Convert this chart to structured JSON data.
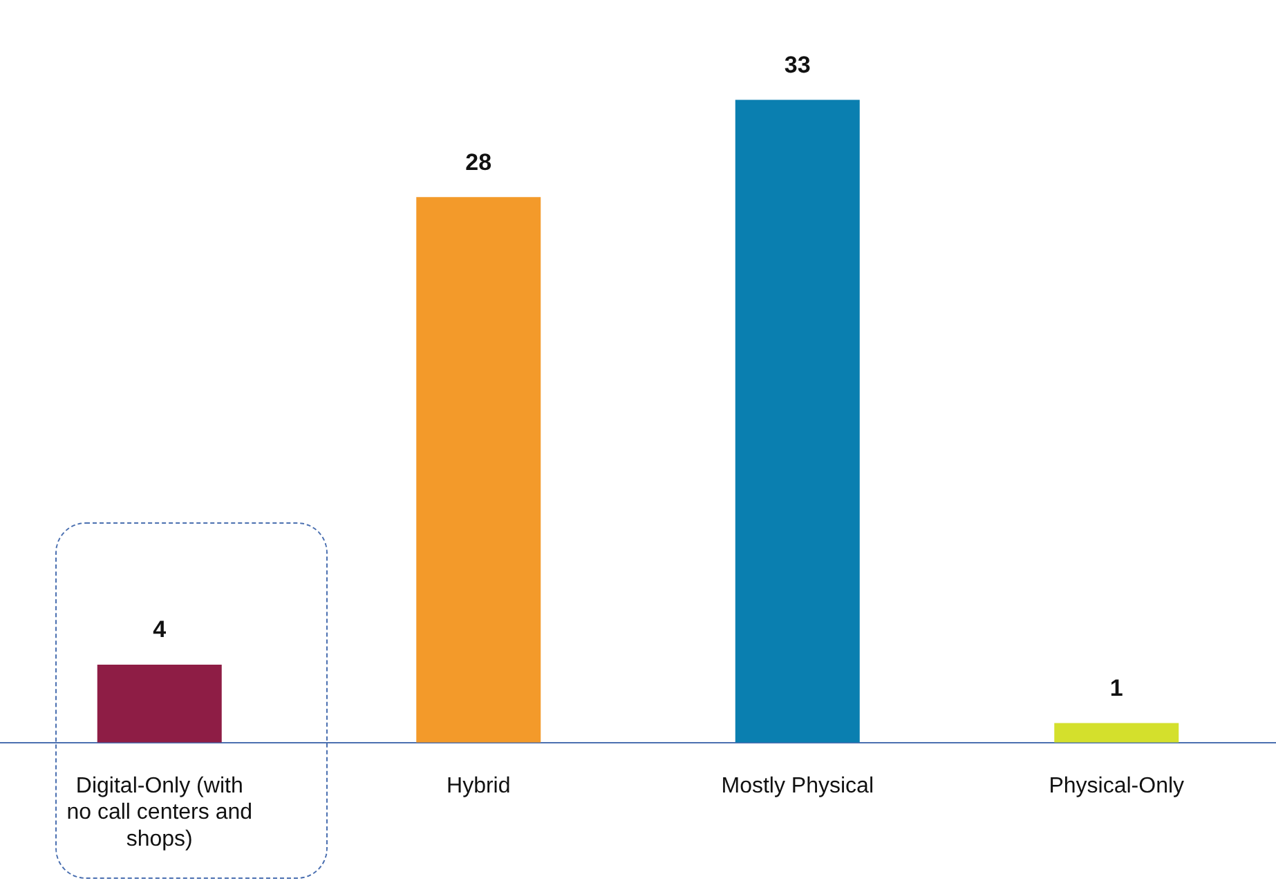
{
  "chart_data": {
    "type": "bar",
    "categories": [
      "Digital-Only (with no call centers and shops)",
      "Hybrid",
      "Mostly Physical",
      "Physical-Only"
    ],
    "values": [
      4,
      28,
      33,
      1
    ],
    "colors": [
      "#8e1d45",
      "#f39a2a",
      "#0a7fb0",
      "#d4e02c"
    ],
    "data_labels": true,
    "grid": false,
    "legend": false,
    "tick_labels": "x"
  }
}
